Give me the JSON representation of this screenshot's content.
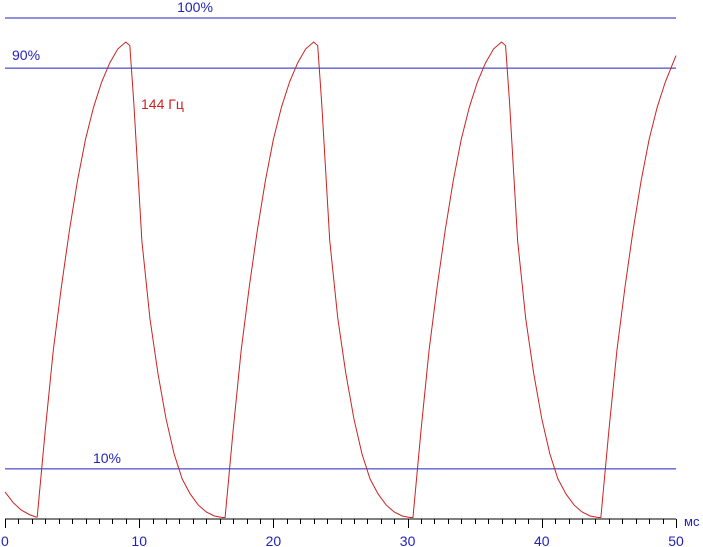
{
  "chart_data": {
    "type": "line",
    "title": "",
    "xlabel": "мс",
    "ylabel": "",
    "xlim": [
      0,
      50
    ],
    "ylim": [
      0,
      1.035
    ],
    "x_ticks": [
      0,
      10,
      20,
      30,
      40,
      50
    ],
    "x_tick_labels": [
      "0",
      "10",
      "20",
      "30",
      "40",
      "50"
    ],
    "x_minor_step": 1,
    "grid": false,
    "reference_lines": [
      {
        "label": "100%",
        "value": 1.0
      },
      {
        "label": "90%",
        "value": 0.9
      },
      {
        "label": "10%",
        "value": 0.1
      }
    ],
    "series": [
      {
        "name": "144 Гц",
        "color": "#cc2222",
        "x": [
          0,
          0.6,
          1.2,
          1.8,
          2.3,
          2.4,
          3.0,
          3.6,
          4.2,
          4.8,
          5.4,
          6.0,
          6.6,
          7.2,
          7.8,
          8.4,
          9.0,
          9.3,
          9.6,
          10.2,
          10.8,
          11.4,
          12.0,
          12.6,
          13.2,
          13.8,
          14.4,
          15.0,
          15.6,
          16.2,
          16.4,
          17.0,
          17.6,
          18.2,
          18.8,
          19.4,
          20.0,
          20.6,
          21.2,
          21.8,
          22.4,
          23.0,
          23.3,
          23.6,
          24.2,
          24.8,
          25.4,
          26.0,
          26.6,
          27.2,
          27.8,
          28.4,
          29.0,
          29.6,
          30.2,
          30.4,
          31.0,
          31.6,
          32.2,
          32.8,
          33.4,
          34.0,
          34.6,
          35.2,
          35.8,
          36.4,
          37.0,
          37.3,
          37.6,
          38.2,
          38.8,
          39.4,
          40.0,
          40.6,
          41.2,
          41.8,
          42.4,
          43.0,
          43.6,
          44.2,
          44.4,
          45.0,
          45.6,
          46.2,
          46.8,
          47.4,
          48.0,
          48.6,
          49.2,
          50.0
        ],
        "values": [
          0.054,
          0.033,
          0.018,
          0.009,
          0.004,
          0.004,
          0.177,
          0.337,
          0.463,
          0.576,
          0.675,
          0.758,
          0.822,
          0.872,
          0.91,
          0.938,
          0.952,
          0.945,
          0.83,
          0.555,
          0.4,
          0.29,
          0.2,
          0.13,
          0.08,
          0.05,
          0.028,
          0.014,
          0.006,
          0.003,
          0.003,
          0.177,
          0.337,
          0.463,
          0.576,
          0.675,
          0.758,
          0.822,
          0.872,
          0.91,
          0.938,
          0.952,
          0.945,
          0.83,
          0.555,
          0.4,
          0.29,
          0.2,
          0.13,
          0.08,
          0.05,
          0.028,
          0.014,
          0.006,
          0.003,
          0.003,
          0.177,
          0.337,
          0.463,
          0.576,
          0.675,
          0.758,
          0.822,
          0.872,
          0.91,
          0.938,
          0.952,
          0.945,
          0.83,
          0.555,
          0.4,
          0.29,
          0.2,
          0.13,
          0.08,
          0.05,
          0.028,
          0.014,
          0.006,
          0.003,
          0.003,
          0.177,
          0.337,
          0.463,
          0.576,
          0.675,
          0.758,
          0.822,
          0.872,
          0.925
        ]
      }
    ]
  },
  "colors": {
    "reference": "#2222bb",
    "axis": "#000000",
    "series": "#cc2222"
  }
}
